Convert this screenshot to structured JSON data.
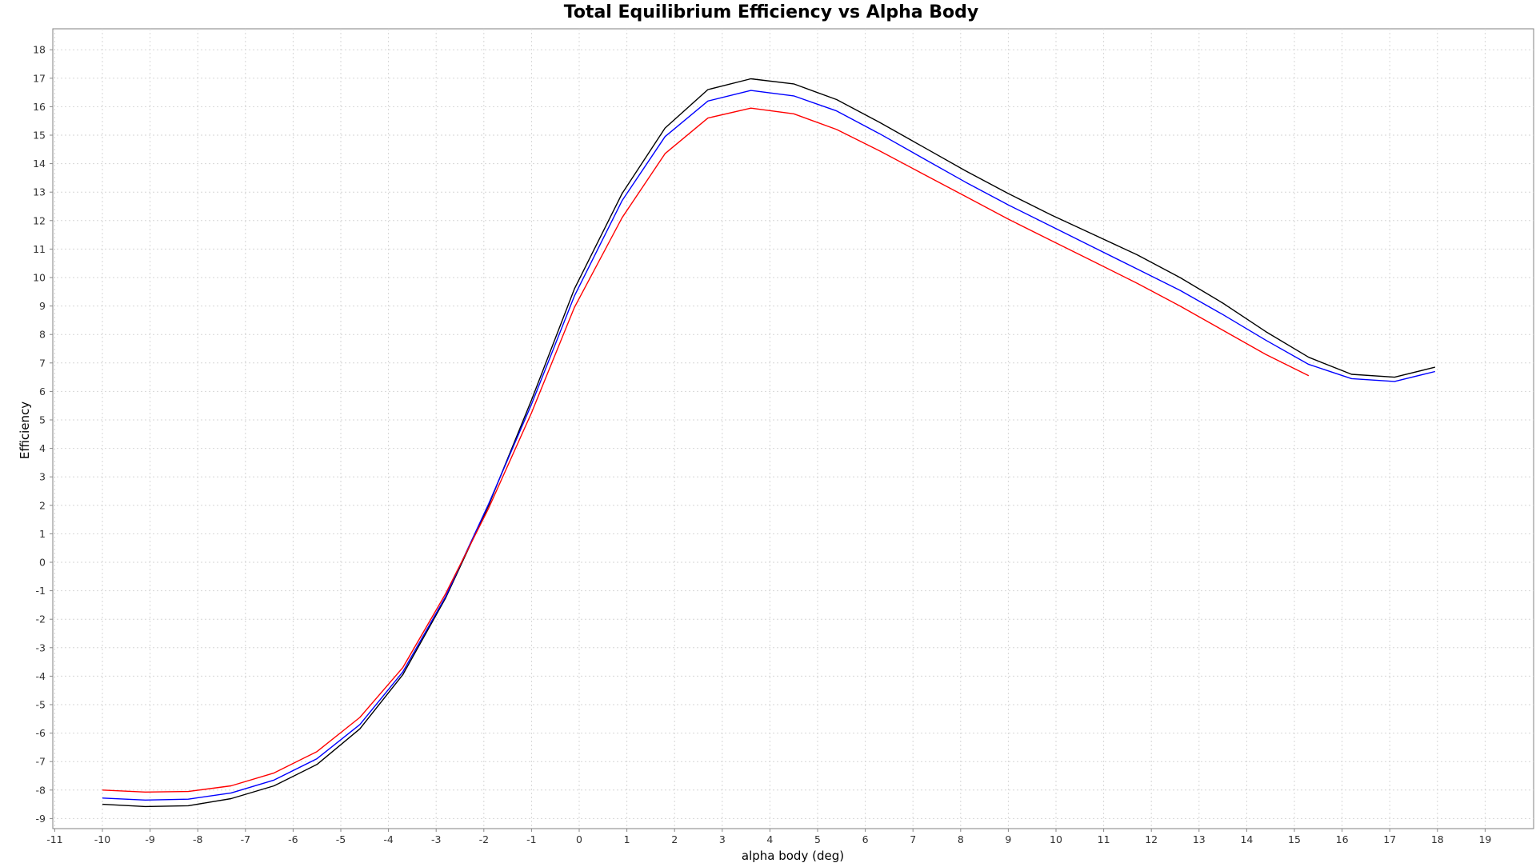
{
  "chart_data": {
    "type": "line",
    "title": "Total Equilibrium Efficiency vs Alpha Body",
    "xlabel": "alpha body (deg)",
    "ylabel": "Efficiency",
    "xlim": [
      -11,
      20
    ],
    "ylim": [
      -9.5,
      18.6
    ],
    "x_ticks": [
      -11,
      -10,
      -9,
      -8,
      -7,
      -6,
      -5,
      -4,
      -3,
      -2,
      -1,
      0,
      1,
      2,
      3,
      4,
      5,
      6,
      7,
      8,
      9,
      10,
      11,
      12,
      13,
      14,
      15,
      16,
      17,
      18,
      19
    ],
    "y_ticks": [
      -9,
      -8,
      -7,
      -6,
      -5,
      -4,
      -3,
      -2,
      -1,
      0,
      1,
      2,
      3,
      4,
      5,
      6,
      7,
      8,
      9,
      10,
      11,
      12,
      13,
      14,
      15,
      16,
      17,
      18
    ],
    "grid": true,
    "legend": "none",
    "series": [
      {
        "color": "#000000",
        "points": [
          [
            -10.0,
            -8.5
          ],
          [
            -9.1,
            -8.58
          ],
          [
            -8.2,
            -8.55
          ],
          [
            -7.3,
            -8.3
          ],
          [
            -6.4,
            -7.85
          ],
          [
            -5.5,
            -7.1
          ],
          [
            -4.6,
            -5.85
          ],
          [
            -3.7,
            -3.95
          ],
          [
            -2.8,
            -1.25
          ],
          [
            -1.9,
            2.0
          ],
          [
            -1.0,
            5.7
          ],
          [
            -0.1,
            9.6
          ],
          [
            0.9,
            12.95
          ],
          [
            1.8,
            15.25
          ],
          [
            2.7,
            16.6
          ],
          [
            3.6,
            16.98
          ],
          [
            4.5,
            16.8
          ],
          [
            5.4,
            16.25
          ],
          [
            6.3,
            15.45
          ],
          [
            7.2,
            14.6
          ],
          [
            8.1,
            13.75
          ],
          [
            9.0,
            12.95
          ],
          [
            9.9,
            12.2
          ],
          [
            10.8,
            11.5
          ],
          [
            11.7,
            10.8
          ],
          [
            12.6,
            10.0
          ],
          [
            13.5,
            9.1
          ],
          [
            14.4,
            8.1
          ],
          [
            15.3,
            7.2
          ],
          [
            16.2,
            6.6
          ],
          [
            17.1,
            6.5
          ],
          [
            17.95,
            6.85
          ]
        ]
      },
      {
        "color": "#0000ff",
        "points": [
          [
            -10.0,
            -8.28
          ],
          [
            -9.1,
            -8.35
          ],
          [
            -8.2,
            -8.32
          ],
          [
            -7.3,
            -8.1
          ],
          [
            -6.4,
            -7.65
          ],
          [
            -5.5,
            -6.9
          ],
          [
            -4.6,
            -5.7
          ],
          [
            -3.7,
            -3.85
          ],
          [
            -2.8,
            -1.2
          ],
          [
            -1.9,
            2.05
          ],
          [
            -1.0,
            5.55
          ],
          [
            -0.1,
            9.35
          ],
          [
            0.9,
            12.7
          ],
          [
            1.8,
            14.95
          ],
          [
            2.7,
            16.2
          ],
          [
            3.6,
            16.57
          ],
          [
            4.5,
            16.38
          ],
          [
            5.4,
            15.85
          ],
          [
            6.3,
            15.05
          ],
          [
            7.2,
            14.2
          ],
          [
            8.1,
            13.35
          ],
          [
            9.0,
            12.55
          ],
          [
            9.9,
            11.8
          ],
          [
            10.8,
            11.05
          ],
          [
            11.7,
            10.3
          ],
          [
            12.6,
            9.55
          ],
          [
            13.5,
            8.7
          ],
          [
            14.4,
            7.8
          ],
          [
            15.3,
            6.95
          ],
          [
            16.2,
            6.45
          ],
          [
            17.1,
            6.35
          ],
          [
            17.95,
            6.7
          ]
        ]
      },
      {
        "color": "#ff0000",
        "points": [
          [
            -10.0,
            -8.0
          ],
          [
            -9.1,
            -8.07
          ],
          [
            -8.2,
            -8.05
          ],
          [
            -7.3,
            -7.85
          ],
          [
            -6.4,
            -7.4
          ],
          [
            -5.5,
            -6.65
          ],
          [
            -4.6,
            -5.45
          ],
          [
            -3.7,
            -3.7
          ],
          [
            -2.8,
            -1.1
          ],
          [
            -1.9,
            1.9
          ],
          [
            -1.0,
            5.25
          ],
          [
            -0.1,
            8.95
          ],
          [
            0.9,
            12.1
          ],
          [
            1.8,
            14.35
          ],
          [
            2.7,
            15.6
          ],
          [
            3.6,
            15.95
          ],
          [
            4.5,
            15.75
          ],
          [
            5.4,
            15.2
          ],
          [
            6.3,
            14.45
          ],
          [
            7.2,
            13.65
          ],
          [
            8.1,
            12.85
          ],
          [
            9.0,
            12.05
          ],
          [
            9.9,
            11.3
          ],
          [
            10.8,
            10.55
          ],
          [
            11.7,
            9.8
          ],
          [
            12.6,
            9.0
          ],
          [
            13.5,
            8.15
          ],
          [
            14.4,
            7.3
          ],
          [
            15.3,
            6.55
          ]
        ]
      }
    ]
  }
}
